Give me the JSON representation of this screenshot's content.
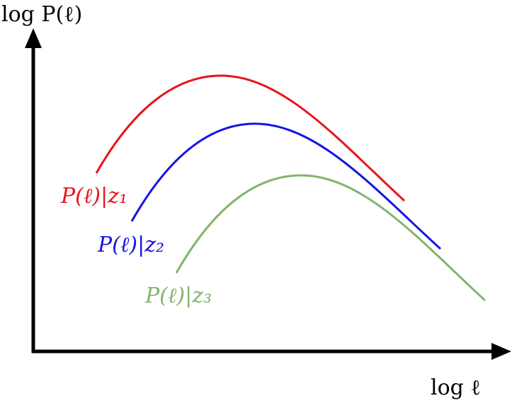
{
  "y_axis_label": "log P(ℓ)",
  "x_axis_label": "log ℓ",
  "curves": [
    {
      "label": "P(ℓ)|z₁",
      "color": "#e8141b"
    },
    {
      "label": "P(ℓ)|z₂",
      "color": "#1414e6"
    },
    {
      "label": "P(ℓ)|z₃",
      "color": "#82b46e"
    }
  ]
}
